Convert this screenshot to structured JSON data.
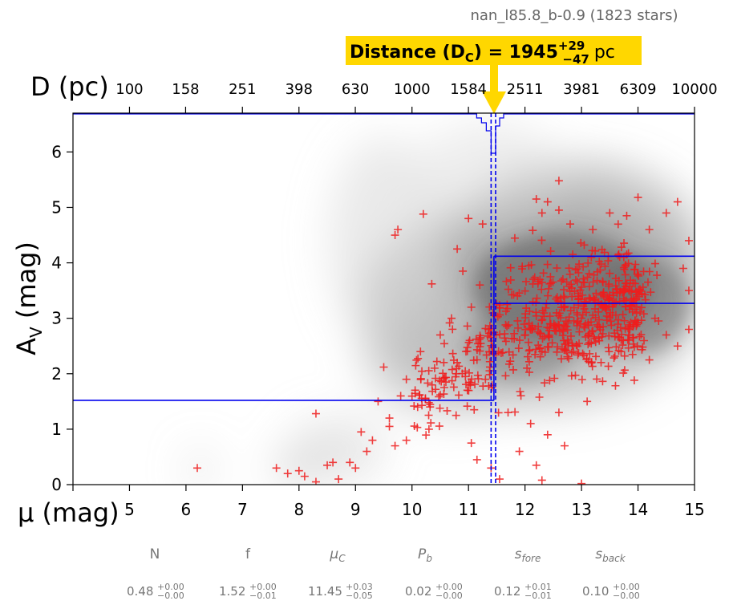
{
  "chart_data": {
    "type": "scatter",
    "title": "nan_l85.8_b-0.9 (1823 stars)",
    "xlabel": "μ (mag)",
    "ylabel": "A_V (mag)",
    "top_xlabel": "D (pc)",
    "xlim": [
      4,
      15
    ],
    "ylim": [
      0,
      6.7
    ],
    "x_ticks": [
      "5",
      "6",
      "7",
      "8",
      "9",
      "10",
      "11",
      "12",
      "13",
      "14",
      "15"
    ],
    "y_ticks": [
      "0",
      "1",
      "2",
      "3",
      "4",
      "5",
      "6"
    ],
    "top_ticks": [
      "100",
      "158",
      "251",
      "398",
      "630",
      "1000",
      "1584",
      "2511",
      "3981",
      "6309",
      "10000"
    ],
    "distance_annotation": {
      "label": "Distance (D",
      "sub": "C",
      "eq": ") = 1945",
      "plus": "+29",
      "minus": "−47",
      "unit": "pc",
      "value_pc": 1945,
      "mu": 11.45
    },
    "foreground_av": 1.52,
    "background_av": 3.27,
    "background_av_upper": 4.12,
    "mu_c": 11.45,
    "mu_c_err": [
      11.4,
      11.48
    ],
    "n_stars": 1823,
    "series": [
      {
        "marker": "+",
        "color": "#ee1c1c",
        "points": [
          [
            6.2,
            0.3
          ],
          [
            7.6,
            0.3
          ],
          [
            7.8,
            0.2
          ],
          [
            8.0,
            0.25
          ],
          [
            8.1,
            0.15
          ],
          [
            8.3,
            0.05
          ],
          [
            8.5,
            0.35
          ],
          [
            8.6,
            0.4
          ],
          [
            8.7,
            0.1
          ],
          [
            8.9,
            0.4
          ],
          [
            9.0,
            0.3
          ],
          [
            9.2,
            0.6
          ],
          [
            8.3,
            1.28
          ],
          [
            9.1,
            0.95
          ],
          [
            9.3,
            0.8
          ],
          [
            9.4,
            1.5
          ],
          [
            9.6,
            1.2
          ],
          [
            9.7,
            0.7
          ],
          [
            9.8,
            1.6
          ],
          [
            9.9,
            0.8
          ],
          [
            9.5,
            2.12
          ],
          [
            9.6,
            1.05
          ],
          [
            9.7,
            4.5
          ],
          [
            9.75,
            4.6
          ],
          [
            9.9,
            1.9
          ],
          [
            10.1,
            1.4
          ],
          [
            10.15,
            2.4
          ],
          [
            10.2,
            4.88
          ],
          [
            10.3,
            1.0
          ],
          [
            10.35,
            3.62
          ],
          [
            10.4,
            2.1
          ],
          [
            10.5,
            2.7
          ],
          [
            10.6,
            1.85
          ],
          [
            10.7,
            3.0
          ],
          [
            10.8,
            2.2
          ],
          [
            10.9,
            3.85
          ],
          [
            10.8,
            4.25
          ],
          [
            11.0,
            4.8
          ],
          [
            11.05,
            3.2
          ],
          [
            11.15,
            0.45
          ],
          [
            11.2,
            3.6
          ],
          [
            11.25,
            4.7
          ],
          [
            11.3,
            1.9
          ],
          [
            11.35,
            2.8
          ],
          [
            11.1,
            1.35
          ],
          [
            11.05,
            0.75
          ],
          [
            11.4,
            0.3
          ],
          [
            11.55,
            0.1
          ],
          [
            12.3,
            0.08
          ],
          [
            13.0,
            0.02
          ],
          [
            12.2,
            5.15
          ],
          [
            12.3,
            4.9
          ],
          [
            12.4,
            5.1
          ],
          [
            12.6,
            4.95
          ],
          [
            12.6,
            5.48
          ],
          [
            12.8,
            4.7
          ],
          [
            13.2,
            4.6
          ],
          [
            13.5,
            4.9
          ],
          [
            13.8,
            4.85
          ],
          [
            14.0,
            5.18
          ],
          [
            14.2,
            4.6
          ],
          [
            14.5,
            4.9
          ],
          [
            14.7,
            5.1
          ],
          [
            14.9,
            4.4
          ],
          [
            14.3,
            3.0
          ],
          [
            14.5,
            2.7
          ],
          [
            14.7,
            2.5
          ],
          [
            14.9,
            2.8
          ],
          [
            14.8,
            3.9
          ],
          [
            14.9,
            3.5
          ],
          [
            12.1,
            1.1
          ],
          [
            12.2,
            0.35
          ],
          [
            12.4,
            0.9
          ],
          [
            12.7,
            0.7
          ],
          [
            11.9,
            0.6
          ],
          [
            11.7,
            1.3
          ],
          [
            12.6,
            1.3
          ],
          [
            13.1,
            1.5
          ],
          [
            13.7,
            2.4
          ],
          [
            14.2,
            2.25
          ]
        ]
      }
    ]
  }
}
